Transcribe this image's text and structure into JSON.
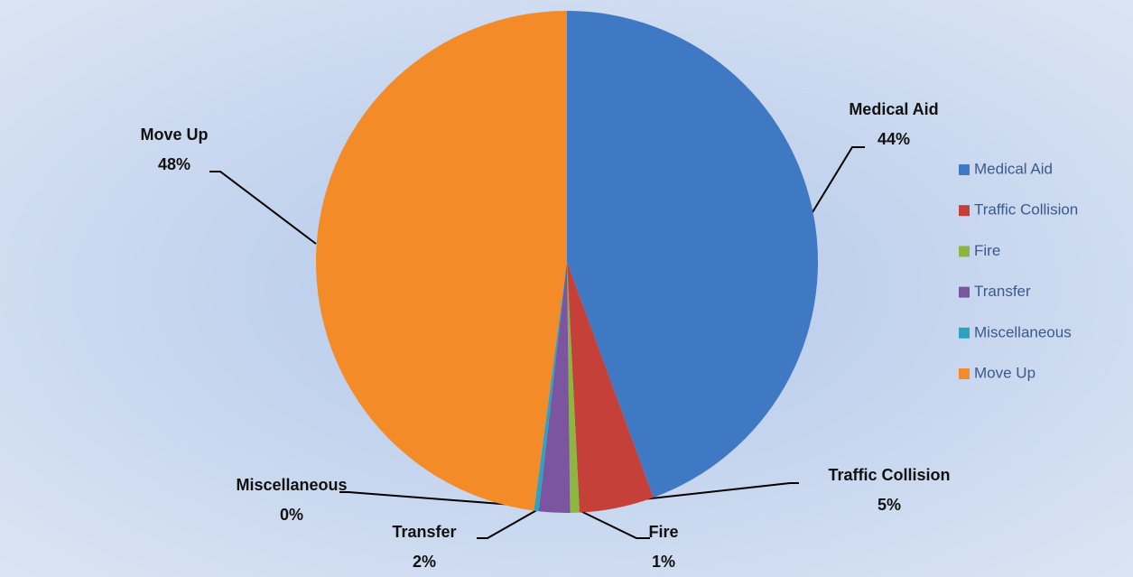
{
  "chart_data": {
    "type": "pie",
    "categories": [
      "Medical Aid",
      "Traffic Collision",
      "Fire",
      "Transfer",
      "Miscellaneous",
      "Move Up"
    ],
    "values": [
      44.4,
      4.8,
      0.6,
      2.0,
      0.3,
      47.9
    ],
    "value_labels": [
      "44%",
      "5%",
      "1%",
      "2%",
      "0%",
      "48%"
    ],
    "colors": [
      "#3f78c3",
      "#c6403a",
      "#8db640",
      "#7b55a0",
      "#2ea3bf",
      "#f38b28"
    ],
    "legend": "right"
  }
}
